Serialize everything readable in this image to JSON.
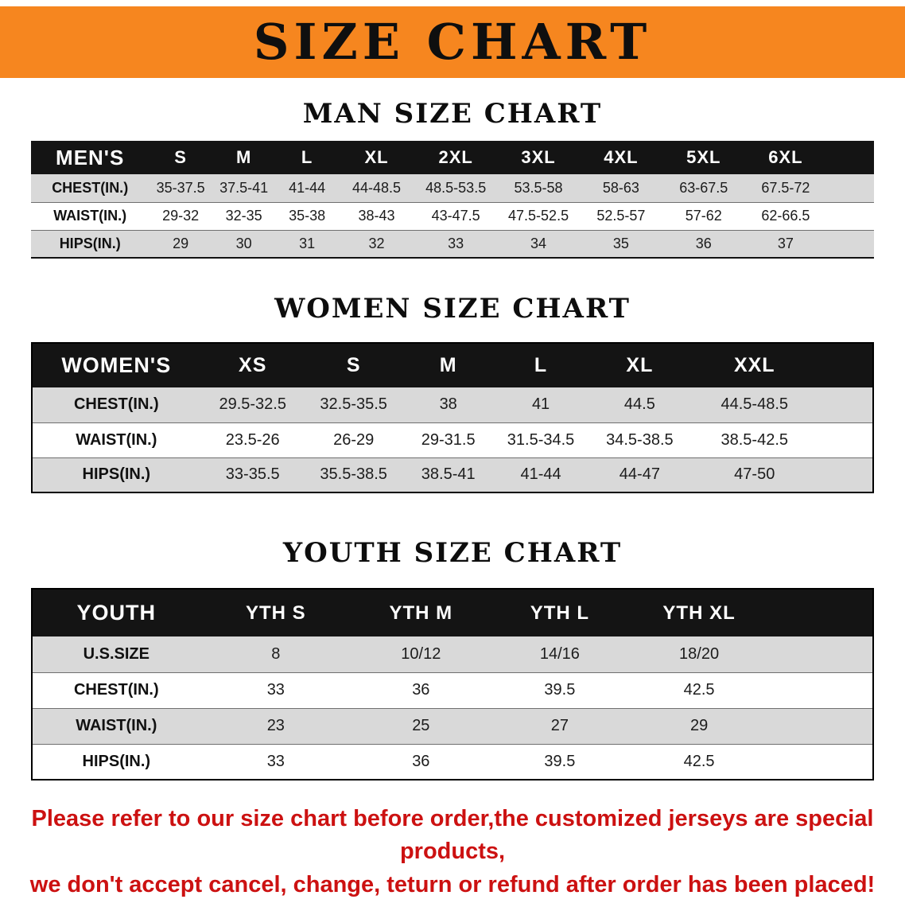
{
  "banner": {
    "title": "SIZE CHART"
  },
  "colors": {
    "banner_bg": "#f6861f",
    "table_header_bg": "#141414",
    "row_stripe": "#d9d9d9",
    "notice_red": "#cc1111"
  },
  "sections": [
    {
      "id": "men",
      "title": "MAN SIZE CHART",
      "table": {
        "header": [
          "MEN'S",
          "S",
          "M",
          "L",
          "XL",
          "2XL",
          "3XL",
          "4XL",
          "5XL",
          "6XL"
        ],
        "rows": [
          [
            "CHEST(IN.)",
            "35-37.5",
            "37.5-41",
            "41-44",
            "44-48.5",
            "48.5-53.5",
            "53.5-58",
            "58-63",
            "63-67.5",
            "67.5-72"
          ],
          [
            "WAIST(IN.)",
            "29-32",
            "32-35",
            "35-38",
            "38-43",
            "43-47.5",
            "47.5-52.5",
            "52.5-57",
            "57-62",
            "62-66.5"
          ],
          [
            "HIPS(IN.)",
            "29",
            "30",
            "31",
            "32",
            "33",
            "34",
            "35",
            "36",
            "37"
          ]
        ]
      }
    },
    {
      "id": "women",
      "title": "WOMEN SIZE CHART",
      "table": {
        "header": [
          "WOMEN'S",
          "XS",
          "S",
          "M",
          "L",
          "XL",
          "XXL"
        ],
        "rows": [
          [
            "CHEST(IN.)",
            "29.5-32.5",
            "32.5-35.5",
            "38",
            "41",
            "44.5",
            "44.5-48.5"
          ],
          [
            "WAIST(IN.)",
            "23.5-26",
            "26-29",
            "29-31.5",
            "31.5-34.5",
            "34.5-38.5",
            "38.5-42.5"
          ],
          [
            "HIPS(IN.)",
            "33-35.5",
            "35.5-38.5",
            "38.5-41",
            "41-44",
            "44-47",
            "47-50"
          ]
        ]
      }
    },
    {
      "id": "youth",
      "title": "YOUTH SIZE CHART",
      "table": {
        "header": [
          "YOUTH",
          "YTH S",
          "YTH M",
          "YTH L",
          "YTH XL"
        ],
        "rows": [
          [
            "U.S.SIZE",
            "8",
            "10/12",
            "14/16",
            "18/20"
          ],
          [
            "CHEST(IN.)",
            "33",
            "36",
            "39.5",
            "42.5"
          ],
          [
            "WAIST(IN.)",
            "23",
            "25",
            "27",
            "29"
          ],
          [
            "HIPS(IN.)",
            "33",
            "36",
            "39.5",
            "42.5"
          ]
        ]
      }
    }
  ],
  "footer": {
    "line1": "Please refer to our size chart before order,the customized jerseys are special products,",
    "line2": "we don't accept cancel, change, teturn or refund after order has been placed!"
  }
}
